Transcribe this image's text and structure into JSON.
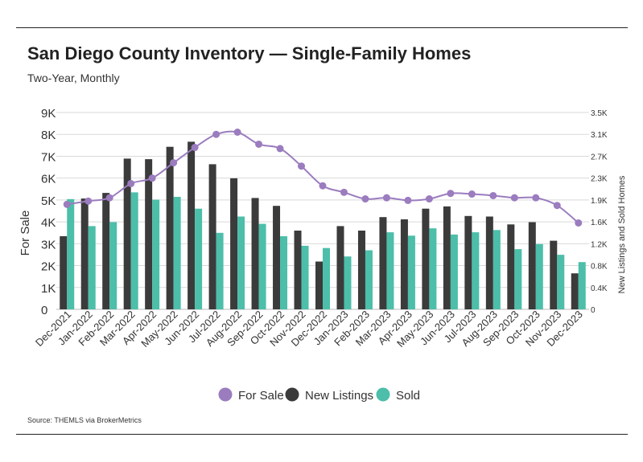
{
  "title": "San Diego County Inventory — Single-Family Homes",
  "subtitle": "Two-Year, Monthly",
  "source": "Source:  THEMLS via BrokerMetrics",
  "colors": {
    "for_sale": "#9b7cbf",
    "new_listings": "#3b3b3b",
    "sold": "#4cbea9",
    "grid": "#d9d9d9"
  },
  "chart_data": {
    "type": "bar",
    "categories": [
      "Dec-2021",
      "Jan-2022",
      "Feb-2022",
      "Mar-2022",
      "Apr-2022",
      "May-2022",
      "Jun-2022",
      "Jul-2022",
      "Aug-2022",
      "Sep-2022",
      "Oct-2022",
      "Nov-2022",
      "Dec-2022",
      "Jan-2023",
      "Feb-2023",
      "Mar-2023",
      "Apr-2023",
      "May-2023",
      "Jun-2023",
      "Jul-2023",
      "Aug-2023",
      "Sep-2023",
      "Oct-2023",
      "Nov-2023",
      "Dec-2023"
    ],
    "ylabel": "For Sale",
    "y2label": "New Listings and Sold Homes",
    "ylim": [
      0,
      9000
    ],
    "y2lim": [
      0,
      3500
    ],
    "yticks": [
      "0",
      "1K",
      "2K",
      "3K",
      "4K",
      "5K",
      "6K",
      "7K",
      "8K",
      "9K"
    ],
    "y2ticks": [
      "0",
      "0.4K",
      "0.8K",
      "1.2K",
      "1.6K",
      "1.9K",
      "2.3K",
      "2.7K",
      "3.1K",
      "3.5K"
    ],
    "grid": true,
    "legend": "bottom",
    "series": [
      {
        "name": "For Sale",
        "type": "line",
        "axis": "left",
        "values": [
          4800,
          4950,
          5100,
          5750,
          6000,
          6700,
          7400,
          8000,
          8100,
          7550,
          7350,
          6550,
          5650,
          5350,
          5050,
          5100,
          4980,
          5050,
          5300,
          5270,
          5200,
          5100,
          5100,
          4750,
          3950
        ]
      },
      {
        "name": "New Listings",
        "type": "bar",
        "axis": "right",
        "values": [
          1300,
          1970,
          2070,
          2680,
          2670,
          2890,
          2980,
          2580,
          2330,
          1980,
          1840,
          1400,
          850,
          1480,
          1400,
          1640,
          1600,
          1790,
          1830,
          1660,
          1650,
          1510,
          1550,
          1220,
          640
        ]
      },
      {
        "name": "Sold",
        "type": "bar",
        "axis": "right",
        "values": [
          1960,
          1480,
          1550,
          2080,
          1950,
          2000,
          1790,
          1360,
          1650,
          1520,
          1300,
          1130,
          1090,
          940,
          1050,
          1370,
          1310,
          1440,
          1330,
          1370,
          1410,
          1070,
          1160,
          970,
          840
        ]
      }
    ]
  }
}
